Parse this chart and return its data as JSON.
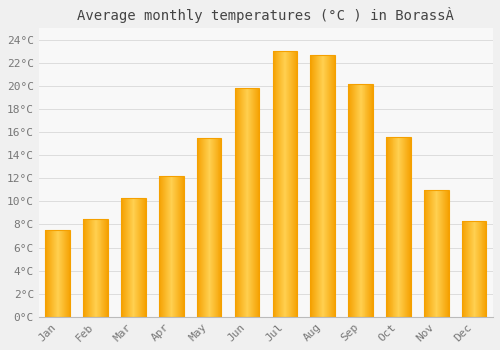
{
  "title": "Average monthly temperatures (°C ) in BorassÀ",
  "months": [
    "Jan",
    "Feb",
    "Mar",
    "Apr",
    "May",
    "Jun",
    "Jul",
    "Aug",
    "Sep",
    "Oct",
    "Nov",
    "Dec"
  ],
  "values": [
    7.5,
    8.5,
    10.3,
    12.2,
    15.5,
    19.8,
    23.0,
    22.7,
    20.2,
    15.6,
    11.0,
    8.3
  ],
  "bar_color_center": "#FFD050",
  "bar_color_edge": "#F5A000",
  "background_color": "#F0F0F0",
  "plot_bg_color": "#F8F8F8",
  "grid_color": "#DDDDDD",
  "ylim": [
    0,
    25
  ],
  "yticks": [
    0,
    2,
    4,
    6,
    8,
    10,
    12,
    14,
    16,
    18,
    20,
    22,
    24
  ],
  "title_fontsize": 10,
  "tick_fontsize": 8,
  "title_color": "#444444",
  "tick_color": "#777777",
  "font_family": "monospace"
}
